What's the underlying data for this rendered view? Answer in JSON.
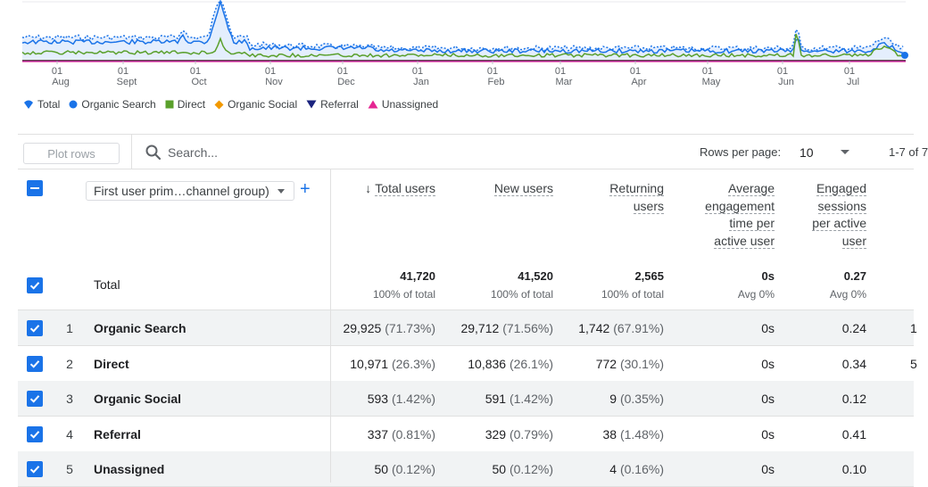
{
  "chart": {
    "months": [
      "Aug",
      "Sept",
      "Oct",
      "Nov",
      "Dec",
      "Jan",
      "Feb",
      "Mar",
      "Apr",
      "May",
      "Jun",
      "Jul"
    ],
    "day_label": "01",
    "series_colors": {
      "total": "#1a73e8",
      "organic_search": "#1a73e8",
      "direct": "#5aa02c",
      "organic_social": "#f29900",
      "referral": "#1a237e",
      "unassigned": "#e52592"
    }
  },
  "legend": [
    {
      "label": "Total",
      "color": "#1a73e8",
      "icon": "drop-icon"
    },
    {
      "label": "Organic Search",
      "color": "#1a73e8",
      "icon": "circle-icon"
    },
    {
      "label": "Direct",
      "color": "#5aa02c",
      "icon": "square-icon"
    },
    {
      "label": "Organic Social",
      "color": "#f29900",
      "icon": "diamond-icon"
    },
    {
      "label": "Referral",
      "color": "#1a237e",
      "icon": "triangle-down-icon"
    },
    {
      "label": "Unassigned",
      "color": "#e52592",
      "icon": "triangle-up-icon"
    }
  ],
  "toolbar": {
    "plot_rows": "Plot rows",
    "search_placeholder": "Search...",
    "rows_per_page_label": "Rows per page:",
    "rows_per_page": "10",
    "range": "1-7 of 7"
  },
  "table": {
    "dimension": "First user prim…channel group)",
    "metrics": [
      "Total users",
      "New users",
      "Returning users",
      "Average engagement time per active user",
      "Engaged sessions per active user"
    ],
    "total": {
      "label": "Total",
      "values": [
        "41,720",
        "41,520",
        "2,565",
        "0s",
        "0.27"
      ],
      "subs": [
        "100% of total",
        "100% of total",
        "100% of total",
        "Avg 0%",
        "Avg 0%"
      ]
    },
    "rows": [
      {
        "n": "1",
        "label": "Organic Search",
        "c1": "29,925",
        "p1": "(71.73%)",
        "c2": "29,712",
        "p2": "(71.56%)",
        "c3": "1,742",
        "p3": "(67.91%)",
        "c4": "0s",
        "c5": "0.24",
        "clip": "1"
      },
      {
        "n": "2",
        "label": "Direct",
        "c1": "10,971",
        "p1": "(26.3%)",
        "c2": "10,836",
        "p2": "(26.1%)",
        "c3": "772",
        "p3": "(30.1%)",
        "c4": "0s",
        "c5": "0.34",
        "clip": "5"
      },
      {
        "n": "3",
        "label": "Organic Social",
        "c1": "593",
        "p1": "(1.42%)",
        "c2": "591",
        "p2": "(1.42%)",
        "c3": "9",
        "p3": "(0.35%)",
        "c4": "0s",
        "c5": "0.12",
        "clip": ""
      },
      {
        "n": "4",
        "label": "Referral",
        "c1": "337",
        "p1": "(0.81%)",
        "c2": "329",
        "p2": "(0.79%)",
        "c3": "38",
        "p3": "(1.48%)",
        "c4": "0s",
        "c5": "0.41",
        "clip": ""
      },
      {
        "n": "5",
        "label": "Unassigned",
        "c1": "50",
        "p1": "(0.12%)",
        "c2": "50",
        "p2": "(0.12%)",
        "c3": "4",
        "p3": "(0.16%)",
        "c4": "0s",
        "c5": "0.10",
        "clip": ""
      }
    ]
  }
}
